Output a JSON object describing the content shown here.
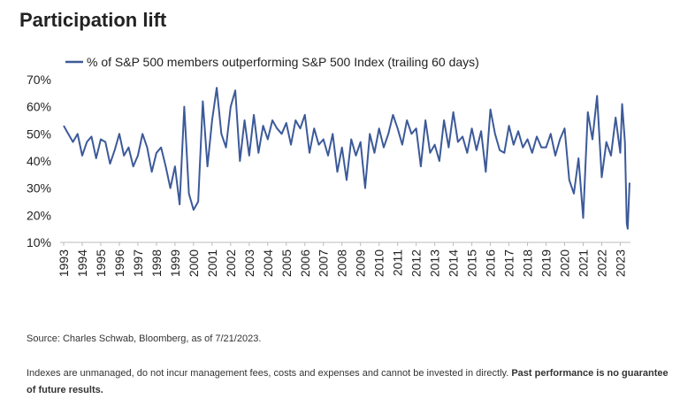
{
  "chart_data": {
    "type": "line",
    "title": "Participation lift",
    "series": [
      {
        "name": "% of S&P 500 members outperforming S&P 500 Index (trailing 60 days)",
        "color": "#3c5a99",
        "x": [
          1993,
          1993.25,
          1993.5,
          1993.75,
          1994,
          1994.25,
          1994.5,
          1994.75,
          1995,
          1995.25,
          1995.5,
          1995.75,
          1996,
          1996.25,
          1996.5,
          1996.75,
          1997,
          1997.25,
          1997.5,
          1997.75,
          1998,
          1998.25,
          1998.5,
          1998.75,
          1999,
          1999.25,
          1999.5,
          1999.75,
          2000,
          2000.25,
          2000.5,
          2000.75,
          2001,
          2001.25,
          2001.5,
          2001.75,
          2002,
          2002.25,
          2002.5,
          2002.75,
          2003,
          2003.25,
          2003.5,
          2003.75,
          2004,
          2004.25,
          2004.5,
          2004.75,
          2005,
          2005.25,
          2005.5,
          2005.75,
          2006,
          2006.25,
          2006.5,
          2006.75,
          2007,
          2007.25,
          2007.5,
          2007.75,
          2008,
          2008.25,
          2008.5,
          2008.75,
          2009,
          2009.25,
          2009.5,
          2009.75,
          2010,
          2010.25,
          2010.5,
          2010.75,
          2011,
          2011.25,
          2011.5,
          2011.75,
          2012,
          2012.25,
          2012.5,
          2012.75,
          2013,
          2013.25,
          2013.5,
          2013.75,
          2014,
          2014.25,
          2014.5,
          2014.75,
          2015,
          2015.25,
          2015.5,
          2015.75,
          2016,
          2016.25,
          2016.5,
          2016.75,
          2017,
          2017.25,
          2017.5,
          2017.75,
          2018,
          2018.25,
          2018.5,
          2018.75,
          2019,
          2019.25,
          2019.5,
          2019.75,
          2020,
          2020.25,
          2020.5,
          2020.75,
          2021,
          2021.25,
          2021.5,
          2021.75,
          2022,
          2022.25,
          2022.5,
          2022.75,
          2023,
          2023.1,
          2023.25,
          2023.35,
          2023.4,
          2023.5
        ],
        "values": [
          53,
          50,
          47,
          50,
          42,
          47,
          49,
          41,
          48,
          47,
          39,
          44,
          50,
          42,
          45,
          38,
          42,
          50,
          45,
          36,
          43,
          45,
          38,
          30,
          38,
          24,
          60,
          28,
          22,
          25,
          62,
          38,
          55,
          67,
          50,
          45,
          60,
          66,
          40,
          55,
          42,
          57,
          43,
          53,
          48,
          55,
          52,
          50,
          54,
          46,
          55,
          52,
          57,
          43,
          52,
          46,
          48,
          42,
          50,
          36,
          45,
          33,
          48,
          42,
          47,
          30,
          50,
          43,
          52,
          45,
          50,
          57,
          52,
          46,
          55,
          50,
          52,
          38,
          55,
          43,
          46,
          40,
          55,
          45,
          58,
          47,
          49,
          43,
          52,
          44,
          51,
          36,
          59,
          50,
          44,
          43,
          53,
          46,
          51,
          45,
          48,
          43,
          49,
          45,
          45,
          50,
          42,
          48,
          52,
          33,
          28,
          41,
          19,
          58,
          48,
          64,
          34,
          47,
          42,
          56,
          43,
          61,
          47,
          17,
          15,
          32
        ]
      }
    ],
    "xlim": [
      1993,
      2023.55
    ],
    "xticks": [
      1993,
      1994,
      1995,
      1996,
      1997,
      1998,
      1999,
      2000,
      2001,
      2002,
      2003,
      2004,
      2005,
      2006,
      2007,
      2008,
      2009,
      2010,
      2011,
      2012,
      2013,
      2014,
      2015,
      2016,
      2017,
      2018,
      2019,
      2020,
      2021,
      2022,
      2023
    ],
    "ylim": [
      10,
      70
    ],
    "yticks": [
      {
        "value": 10,
        "label": "10%"
      },
      {
        "value": 20,
        "label": "20%"
      },
      {
        "value": 30,
        "label": "30%"
      },
      {
        "value": 40,
        "label": "40%"
      },
      {
        "value": 50,
        "label": "50%"
      },
      {
        "value": 60,
        "label": "60%"
      },
      {
        "value": 70,
        "label": "70%"
      }
    ],
    "grid": false,
    "legend": "top-left",
    "source": "Source: Charles Schwab, Bloomberg, as of 7/21/2023.",
    "note": "Indexes are unmanaged, do not incur management fees, costs and expenses and cannot be invested in directly. ",
    "note_bold": "Past performance is no guarantee of future results."
  }
}
